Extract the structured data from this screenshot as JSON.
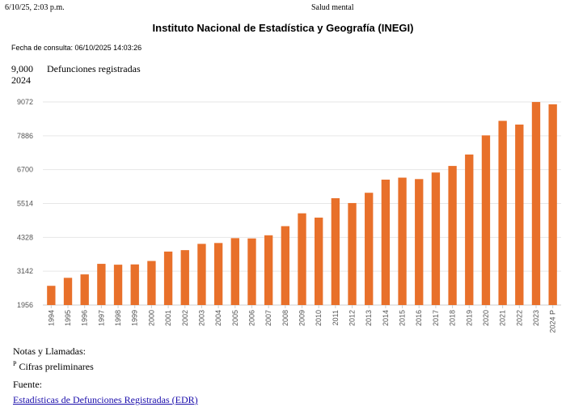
{
  "header": {
    "print_date": "6/10/25, 2:03 p.m.",
    "print_title": "Salud mental"
  },
  "report": {
    "title": "Instituto Nacional de Estadística y Geografía (INEGI)",
    "consult_label": "Fecha de consulta: 06/10/2025 14:03:26"
  },
  "headline": {
    "value": "9,000",
    "label": "Defunciones registradas",
    "year": "2024"
  },
  "chart_data": {
    "type": "bar",
    "title": "Defunciones registradas",
    "xlabel": "",
    "ylabel": "",
    "categories": [
      "1994",
      "1995",
      "1996",
      "1997",
      "1998",
      "1999",
      "2000",
      "2001",
      "2002",
      "2003",
      "2004",
      "2005",
      "2006",
      "2007",
      "2008",
      "2009",
      "2010",
      "2011",
      "2012",
      "2013",
      "2014",
      "2015",
      "2016",
      "2017",
      "2018",
      "2019",
      "2020",
      "2021",
      "2022",
      "2023",
      "2024 P"
    ],
    "values": [
      2630,
      2910,
      3030,
      3400,
      3370,
      3380,
      3500,
      3830,
      3880,
      4100,
      4130,
      4300,
      4290,
      4400,
      4720,
      5170,
      5020,
      5700,
      5530,
      5890,
      6350,
      6420,
      6370,
      6600,
      6830,
      7230,
      7900,
      8410,
      8280,
      9070,
      8990
    ],
    "ylim": [
      1956,
      9072
    ],
    "yticks": [
      1956,
      3142,
      4328,
      5514,
      6700,
      7886,
      9072
    ],
    "grid": true,
    "color": "#e8702a"
  },
  "notes": {
    "title": "Notas y Llamadas:",
    "marker": "P",
    "text": " Cifras preliminares"
  },
  "source": {
    "title": "Fuente:",
    "link_text": "Estadísticas de Defunciones Registradas (EDR)"
  }
}
